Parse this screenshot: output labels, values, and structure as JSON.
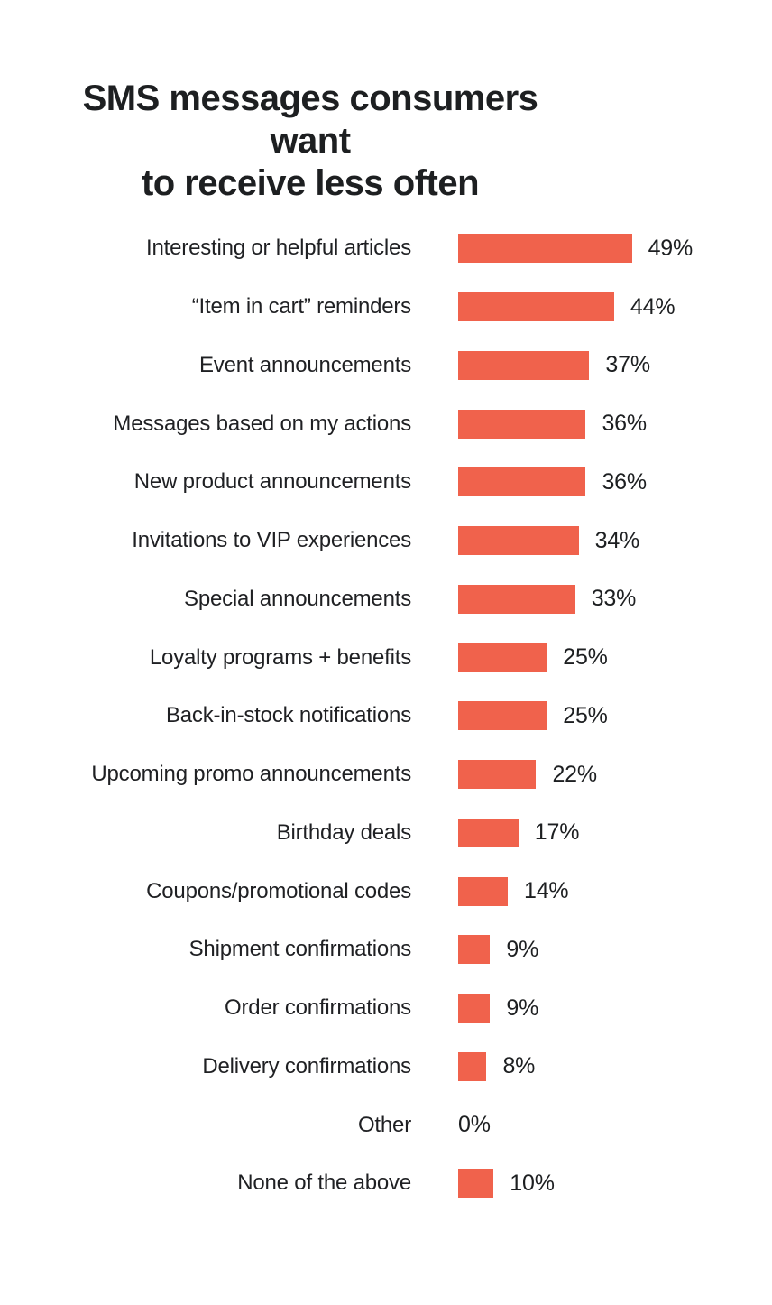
{
  "title": {
    "line1": "SMS messages consumers want",
    "line2": "to receive less often"
  },
  "colors": {
    "bar": "#F0624C",
    "text": "#1D1F21",
    "background": "#FFFFFF"
  },
  "chart_data": {
    "type": "bar",
    "orientation": "horizontal",
    "title": "SMS messages consumers want to receive less often",
    "unit": "%",
    "xlim": [
      0,
      50
    ],
    "grid": false,
    "legend": null,
    "value_label_position": "end-of-bar",
    "categories": [
      "Interesting or helpful articles",
      "“Item in cart” reminders",
      "Event announcements",
      "Messages based on my actions",
      "New product announcements",
      "Invitations to VIP experiences",
      "Special announcements",
      "Loyalty programs + benefits",
      "Back-in-stock notifications",
      "Upcoming promo announcements",
      "Birthday deals",
      "Coupons/promotional codes",
      "Shipment confirmations",
      "Order confirmations",
      "Delivery confirmations",
      "Other",
      "None of the above"
    ],
    "values": [
      49,
      44,
      37,
      36,
      36,
      34,
      33,
      25,
      25,
      22,
      17,
      14,
      9,
      9,
      8,
      0,
      10
    ],
    "value_labels": [
      "49%",
      "44%",
      "37%",
      "36%",
      "36%",
      "34%",
      "33%",
      "25%",
      "25%",
      "22%",
      "17%",
      "14%",
      "9%",
      "9%",
      "8%",
      "0%",
      "10%"
    ]
  }
}
